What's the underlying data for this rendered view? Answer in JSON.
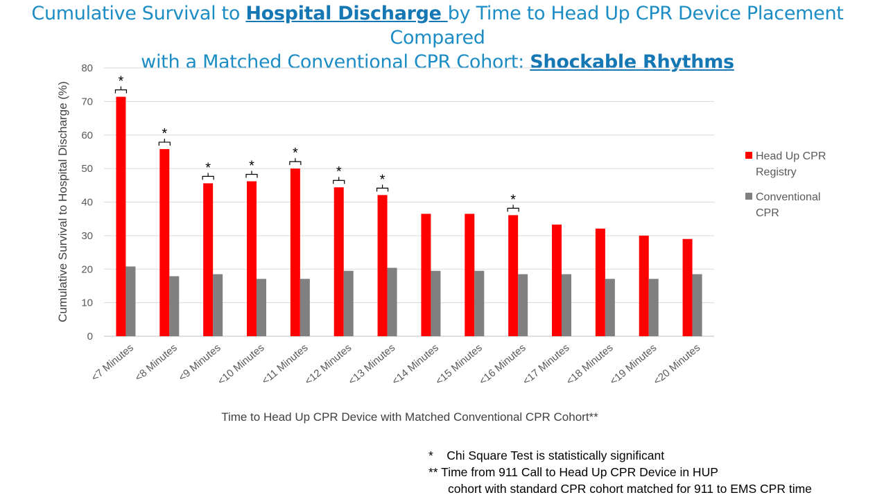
{
  "title": {
    "part1": "Cumulative Survival to ",
    "link1": "Hospital Discharge ",
    "part2": "by Time to Head Up CPR Device Placement Compared",
    "part3": "with a Matched Conventional CPR Cohort: ",
    "link2": "Shockable Rhythms"
  },
  "chart_data": {
    "type": "bar",
    "title": "Cumulative Survival to Hospital Discharge by Time to Head Up CPR Device Placement Compared with a Matched Conventional CPR Cohort: Shockable Rhythms",
    "xlabel": "Time to Head Up CPR Device with Matched Conventional CPR Cohort**",
    "ylabel": "Cumulative Survival to Hospital Discharge (%)",
    "ylim": [
      0,
      80
    ],
    "yticks": [
      0,
      10,
      20,
      30,
      40,
      50,
      60,
      70,
      80
    ],
    "grid": true,
    "legend_position": "right",
    "categories": [
      "<7 Minutes",
      "<8 Minutes",
      "<9 Minutes",
      "<10 Minutes",
      "<11 Minutes",
      "<12 Minutes",
      "<13 Minutes",
      "<14 Minutes",
      "<15 Minutes",
      "<16 Minutes",
      "<17 Minutes",
      "<18 Minutes",
      "<19 Minutes",
      "<20 Minutes"
    ],
    "series": [
      {
        "name": "Head Up CPR Registry",
        "color": "#ff0000",
        "values": [
          71.4,
          55.8,
          45.6,
          46.2,
          50.0,
          44.4,
          42.1,
          36.5,
          36.5,
          36.1,
          33.3,
          32.1,
          30.0,
          29.0
        ]
      },
      {
        "name": "Conventional CPR",
        "color": "#808080",
        "values": [
          20.8,
          17.9,
          18.5,
          17.1,
          17.1,
          19.5,
          20.4,
          19.5,
          19.5,
          18.5,
          18.5,
          17.1,
          17.1,
          18.5
        ]
      }
    ],
    "significant": [
      true,
      true,
      true,
      true,
      true,
      true,
      true,
      false,
      false,
      true,
      false,
      false,
      false,
      false
    ],
    "marker": "*"
  },
  "notes": {
    "line1_marker": "*",
    "line1_text": "Chi Square Test is statistically significant",
    "line2": "** Time from 911 Call to Head Up CPR Device in HUP",
    "line3": "cohort with standard CPR cohort matched for 911 to EMS CPR time"
  }
}
